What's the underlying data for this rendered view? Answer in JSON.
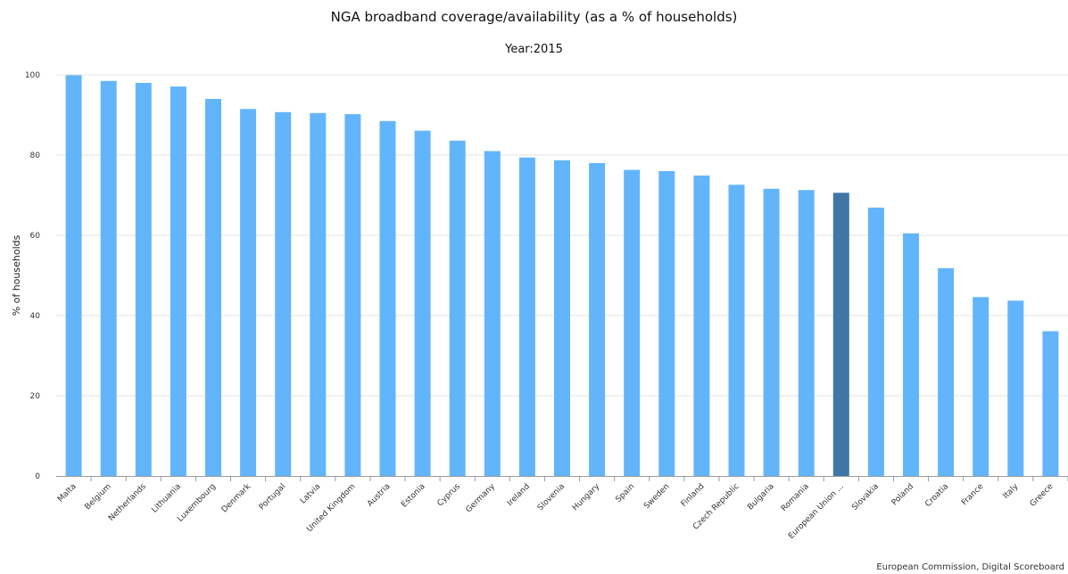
{
  "chart_data": {
    "type": "bar",
    "title": "NGA broadband coverage/availability (as a % of households)",
    "subtitle": "Year:2015",
    "xlabel": "",
    "ylabel": "% of households",
    "ylim": [
      0,
      100
    ],
    "yticks": [
      0,
      20,
      40,
      60,
      80,
      100
    ],
    "grid": true,
    "legend": "none",
    "credit": "European Commission, Digital Scoreboard",
    "colors": {
      "bar": "#63B5FB",
      "highlight": "#3F76A6",
      "grid": "#E3E3E3",
      "axis": "#999999"
    },
    "highlight_category": "European Union ...",
    "categories": [
      "Malta",
      "Belgium",
      "Netherlands",
      "Lithuania",
      "Luxembourg",
      "Denmark",
      "Portugal",
      "Latvia",
      "United Kingdom",
      "Austria",
      "Estonia",
      "Cyprus",
      "Germany",
      "Ireland",
      "Slovenia",
      "Hungary",
      "Spain",
      "Sweden",
      "Finland",
      "Czech Republic",
      "Bulgaria",
      "Romania",
      "European Union ...",
      "Slovakia",
      "Poland",
      "Croatia",
      "France",
      "Italy",
      "Greece"
    ],
    "values": [
      99.9,
      98.5,
      98.0,
      97.1,
      94.0,
      91.5,
      90.7,
      90.5,
      90.2,
      88.5,
      86.1,
      83.6,
      81.0,
      79.4,
      78.7,
      78.0,
      76.3,
      76.0,
      74.9,
      72.6,
      71.6,
      71.3,
      70.6,
      66.9,
      60.5,
      51.8,
      44.6,
      43.7,
      36.1
    ]
  }
}
